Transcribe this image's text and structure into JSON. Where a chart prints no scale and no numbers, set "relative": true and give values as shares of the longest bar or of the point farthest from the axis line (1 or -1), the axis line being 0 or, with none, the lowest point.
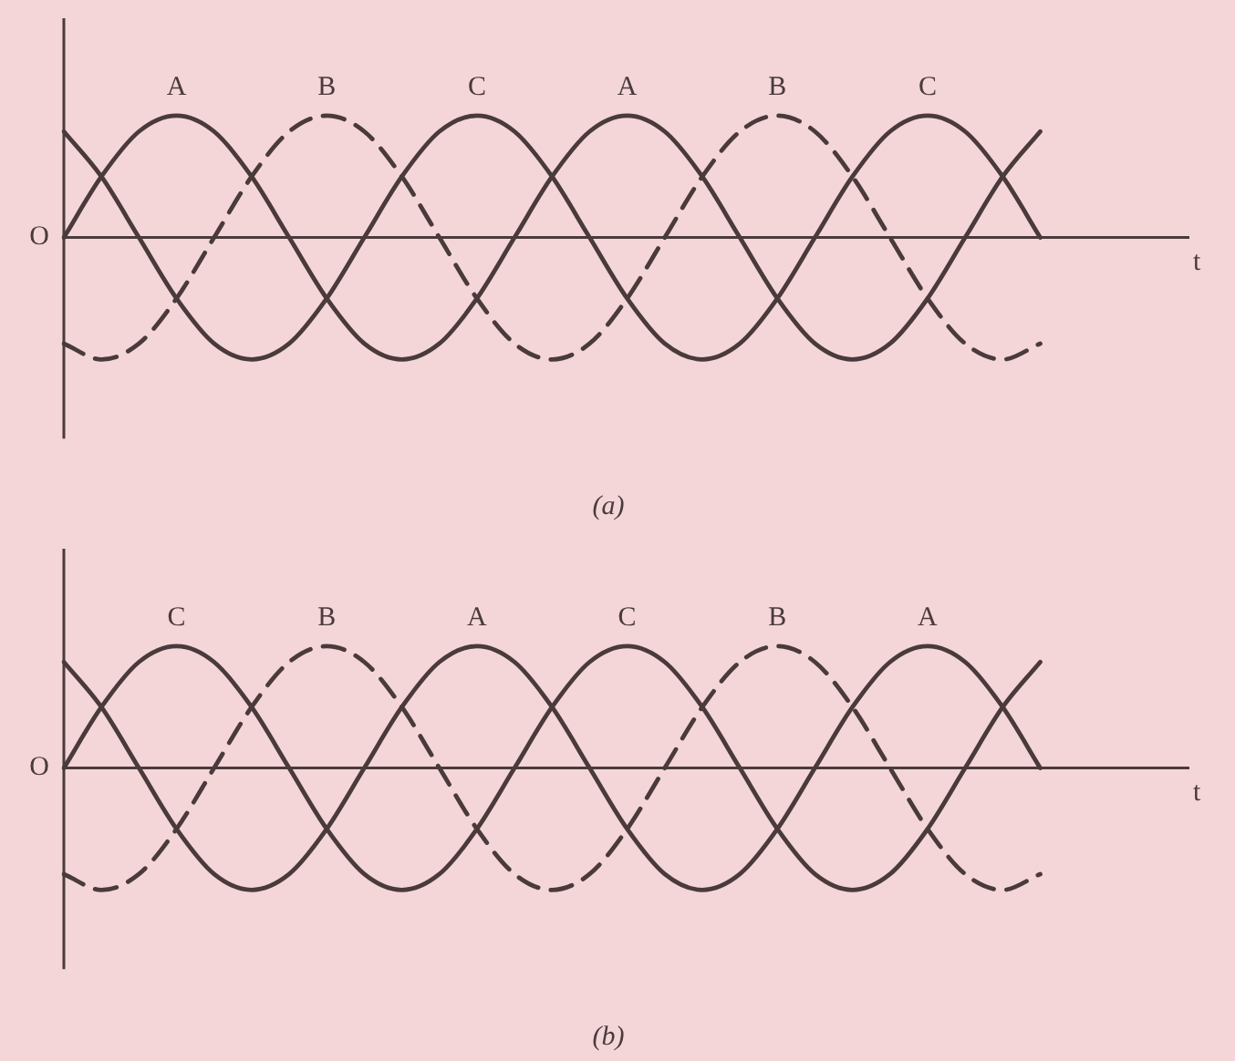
{
  "chart_data": [
    {
      "type": "line",
      "title": "(a)",
      "xlabel": "t",
      "annotations": [
        "O"
      ],
      "relative": true,
      "legend": false,
      "marker": "none",
      "categories": [
        null,
        null,
        null,
        null,
        null,
        null,
        null,
        null,
        null,
        null,
        null,
        null,
        null,
        null,
        null,
        null,
        null,
        null,
        null,
        null,
        null,
        null,
        null,
        null,
        null,
        null,
        null,
        null,
        null,
        null
      ],
      "series": [
        {
          "name": "A",
          "color": "#4a3a3c",
          "line_style": "solid",
          "values": [
            0,
            0.5,
            0.87,
            1,
            0.87,
            0.5,
            0,
            -0.5,
            -0.87,
            -1,
            -0.87,
            -0.5,
            0,
            0.5,
            0.87,
            1,
            0.87,
            0.5,
            0,
            -0.5,
            -0.87,
            -1,
            -0.87,
            -0.5,
            0,
            0.5,
            0.87,
            null,
            null,
            null
          ]
        },
        {
          "name": "B",
          "color": "#4a3a3c",
          "line_style": "dashed",
          "values": [
            -0.87,
            -1,
            -0.87,
            -0.5,
            0,
            0.5,
            0.87,
            1,
            0.87,
            0.5,
            0,
            -0.5,
            -0.87,
            -1,
            -0.87,
            -0.5,
            0,
            0.5,
            0.87,
            1,
            0.87,
            0.5,
            0,
            -0.5,
            -0.87,
            -1,
            -0.87,
            null,
            null,
            null
          ]
        },
        {
          "name": "C",
          "color": "#4a3a3c",
          "line_style": "solid",
          "values": [
            0.87,
            0.5,
            0,
            -0.5,
            -0.87,
            -1,
            -0.87,
            -0.5,
            0,
            0.5,
            0.87,
            1,
            0.87,
            0.5,
            0,
            -0.5,
            -0.87,
            -1,
            -0.87,
            -0.5,
            0,
            0.5,
            0.87,
            1,
            0.87,
            0.5,
            0,
            null,
            null,
            null
          ]
        }
      ]
    },
    {
      "type": "line",
      "title": "(b)",
      "xlabel": "t",
      "annotations": [
        "O"
      ],
      "relative": true,
      "legend": false,
      "marker": "none",
      "categories": [
        null,
        null,
        null,
        null,
        null,
        null,
        null,
        null,
        null,
        null,
        null,
        null,
        null,
        null,
        null,
        null,
        null,
        null,
        null,
        null,
        null,
        null,
        null,
        null,
        null,
        null,
        null,
        null,
        null,
        null
      ],
      "series": [
        {
          "name": "C",
          "color": "#4a3a3c",
          "line_style": "solid",
          "values": [
            0,
            0.5,
            0.87,
            1,
            0.87,
            0.5,
            0,
            -0.5,
            -0.87,
            -1,
            -0.87,
            -0.5,
            0,
            0.5,
            0.87,
            1,
            0.87,
            0.5,
            0,
            -0.5,
            -0.87,
            -1,
            -0.87,
            -0.5,
            0,
            0.5,
            0.87,
            null,
            null,
            null
          ]
        },
        {
          "name": "B",
          "color": "#4a3a3c",
          "line_style": "dashed",
          "values": [
            -0.87,
            -1,
            -0.87,
            -0.5,
            0,
            0.5,
            0.87,
            1,
            0.87,
            0.5,
            0,
            -0.5,
            -0.87,
            -1,
            -0.87,
            -0.5,
            0,
            0.5,
            0.87,
            1,
            0.87,
            0.5,
            0,
            -0.5,
            -0.87,
            -1,
            -0.87,
            null,
            null,
            null
          ]
        },
        {
          "name": "A",
          "color": "#4a3a3c",
          "line_style": "solid",
          "values": [
            0.87,
            0.5,
            0,
            -0.5,
            -0.87,
            -1,
            -0.87,
            -0.5,
            0,
            0.5,
            0.87,
            1,
            0.87,
            0.5,
            0,
            -0.5,
            -0.87,
            -1,
            -0.87,
            -0.5,
            0,
            0.5,
            0.87,
            1,
            0.87,
            0.5,
            0,
            null,
            null,
            null
          ]
        }
      ]
    }
  ]
}
